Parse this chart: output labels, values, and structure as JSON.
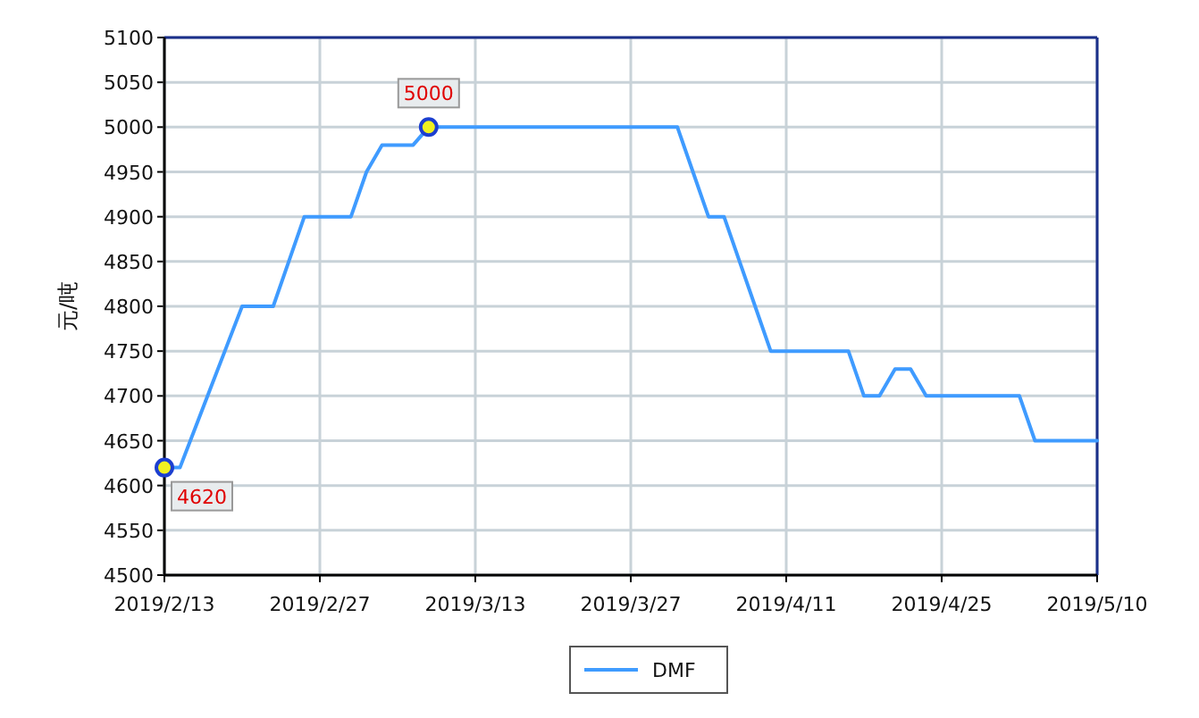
{
  "chart_data": {
    "type": "line",
    "ylabel": "元/吨",
    "categories": [
      "2019/2/13",
      null,
      null,
      null,
      null,
      null,
      null,
      null,
      null,
      null,
      "2019/2/27",
      null,
      null,
      null,
      null,
      null,
      null,
      null,
      null,
      null,
      "2019/3/13",
      null,
      null,
      null,
      null,
      null,
      null,
      null,
      null,
      null,
      "2019/3/27",
      null,
      null,
      null,
      null,
      null,
      null,
      null,
      null,
      null,
      "2019/4/11",
      null,
      null,
      null,
      null,
      null,
      null,
      null,
      null,
      null,
      "2019/4/25",
      null,
      null,
      null,
      null,
      null,
      null,
      null,
      null,
      null,
      "2019/5/10"
    ],
    "series": [
      {
        "name": "DMF",
        "color": "#3f9bff",
        "values": [
          4620,
          4620,
          4665,
          4710,
          4755,
          4800,
          4800,
          4800,
          4850,
          4900,
          4900,
          4900,
          4900,
          4950,
          4980,
          4980,
          4980,
          5000,
          5000,
          5000,
          5000,
          5000,
          5000,
          5000,
          5000,
          5000,
          5000,
          5000,
          5000,
          5000,
          5000,
          5000,
          5000,
          5000,
          4950,
          4900,
          4900,
          4850,
          4800,
          4750,
          4750,
          4750,
          4750,
          4750,
          4750,
          4700,
          4700,
          4730,
          4730,
          4700,
          4700,
          4700,
          4700,
          4700,
          4700,
          4700,
          4650,
          4650,
          4650,
          4650,
          4650
        ],
        "value_labels": [
          "4620",
          null,
          null,
          null,
          null,
          null,
          null,
          null,
          null,
          null,
          null,
          null,
          null,
          null,
          null,
          null,
          null,
          "5000",
          null,
          null,
          null,
          null,
          null,
          null,
          null,
          null,
          null,
          null,
          null,
          null,
          null,
          null,
          null,
          null,
          null,
          null,
          null,
          null,
          null,
          null,
          null,
          null,
          null,
          null,
          null,
          null,
          null,
          null,
          null,
          null,
          null,
          null,
          null,
          null,
          null,
          null,
          null,
          null,
          null,
          null,
          null
        ]
      }
    ],
    "ylim": [
      4500,
      5100
    ],
    "yticks": [
      4500,
      4550,
      4600,
      4650,
      4700,
      4750,
      4800,
      4850,
      4900,
      4950,
      5000,
      5050,
      5100
    ],
    "grid": true,
    "legend": "bottom",
    "marker": "none",
    "line_style": "solid"
  }
}
